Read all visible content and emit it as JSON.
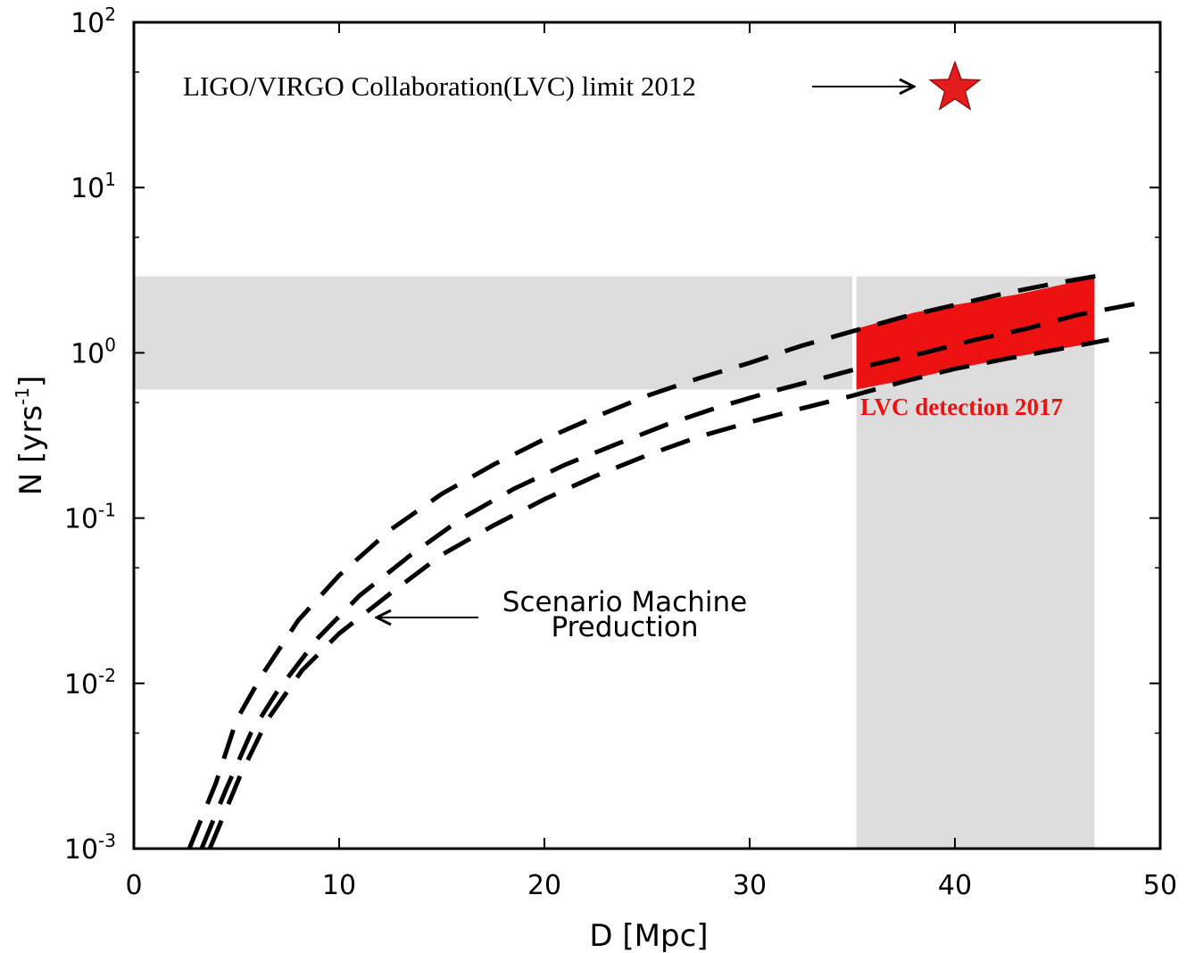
{
  "chart_data": {
    "type": "line",
    "xlabel": "D [Mpc]",
    "ylabel": "N [yrs⁻¹]",
    "ylabel_parts": {
      "base": "N [yrs",
      "sup": "-1",
      "end": "]"
    },
    "xlim": [
      0,
      50
    ],
    "ylim": [
      0.001,
      100
    ],
    "y_scale": "log",
    "grid": false,
    "x_ticks": [
      {
        "value": 0,
        "label": "0"
      },
      {
        "value": 10,
        "label": "10"
      },
      {
        "value": 20,
        "label": "20"
      },
      {
        "value": 30,
        "label": "30"
      },
      {
        "value": 40,
        "label": "40"
      },
      {
        "value": 50,
        "label": "50"
      }
    ],
    "y_ticks": [
      {
        "value": 0.001,
        "base": "10",
        "exp": "-3"
      },
      {
        "value": 0.01,
        "base": "10",
        "exp": "-2"
      },
      {
        "value": 0.1,
        "base": "10",
        "exp": "-1"
      },
      {
        "value": 1,
        "base": "10",
        "exp": "0"
      },
      {
        "value": 10,
        "base": "10",
        "exp": "1"
      },
      {
        "value": 100,
        "base": "10",
        "exp": "2"
      }
    ],
    "series": [
      {
        "style": "dashed",
        "color": "#000000",
        "x": [
          2.7,
          4,
          5,
          6.2,
          8,
          10,
          12.5,
          15,
          17.5,
          20,
          22.5,
          25,
          27.5,
          30,
          32.5,
          35,
          37.5,
          40,
          42.5,
          45,
          47.5
        ],
        "y": [
          0.001,
          0.0025,
          0.006,
          0.011,
          0.024,
          0.045,
          0.085,
          0.14,
          0.21,
          0.3,
          0.41,
          0.55,
          0.7,
          0.87,
          1.1,
          1.35,
          1.65,
          1.95,
          2.3,
          2.65,
          3.0
        ]
      },
      {
        "style": "dashed",
        "color": "#000000",
        "x": [
          3.3,
          4.5,
          5.7,
          7,
          9,
          11,
          13.5,
          16,
          18.5,
          21,
          23.5,
          26,
          28.5,
          31,
          33.5,
          36,
          38.5,
          41,
          43.5,
          46,
          49
        ],
        "y": [
          0.001,
          0.0023,
          0.005,
          0.009,
          0.019,
          0.034,
          0.06,
          0.1,
          0.15,
          0.21,
          0.28,
          0.37,
          0.47,
          0.58,
          0.7,
          0.85,
          1.0,
          1.2,
          1.4,
          1.7,
          2.0
        ]
      },
      {
        "style": "dashed",
        "color": "#000000",
        "x": [
          3.7,
          5.2,
          6.5,
          8.2,
          10,
          12.5,
          15,
          17.5,
          20,
          22.5,
          25,
          27.5,
          30,
          32.5,
          35,
          37.5,
          40,
          42.5,
          45,
          47.5
        ],
        "y": [
          0.001,
          0.0028,
          0.006,
          0.012,
          0.02,
          0.035,
          0.06,
          0.09,
          0.13,
          0.18,
          0.24,
          0.31,
          0.38,
          0.46,
          0.55,
          0.67,
          0.8,
          0.92,
          1.05,
          1.2
        ]
      }
    ],
    "shaded_regions": [
      {
        "name": "horizontal-band",
        "x": [
          0,
          35
        ],
        "y": [
          0.6,
          2.9
        ],
        "color": "#dcdcdc"
      },
      {
        "name": "vertical-band",
        "x": [
          35.2,
          46.8
        ],
        "y": [
          0.001,
          2.9
        ],
        "color": "#dcdcdc"
      }
    ],
    "red_band": {
      "color": "#ee1111",
      "x": [
        35.2,
        46.8
      ],
      "upper": [
        {
          "x": 35.2,
          "y": 1.4
        },
        {
          "x": 38,
          "y": 1.75
        },
        {
          "x": 40,
          "y": 1.95
        },
        {
          "x": 43,
          "y": 2.25
        },
        {
          "x": 46.8,
          "y": 2.85
        }
      ],
      "lower": [
        {
          "x": 35.2,
          "y": 0.6
        },
        {
          "x": 38,
          "y": 0.7
        },
        {
          "x": 40,
          "y": 0.8
        },
        {
          "x": 43,
          "y": 0.95
        },
        {
          "x": 46.8,
          "y": 1.15
        }
      ]
    },
    "star_marker": {
      "x": 40,
      "y": 40,
      "color": "#e41c1c"
    },
    "annotations": {
      "ligo_limit": "LIGO/VIRGO Collaboration(LVC) limit 2012",
      "lvc_detection": "LVC detection 2017",
      "scenario_line1": "Scenario Machine",
      "scenario_line2": "Preduction"
    }
  }
}
